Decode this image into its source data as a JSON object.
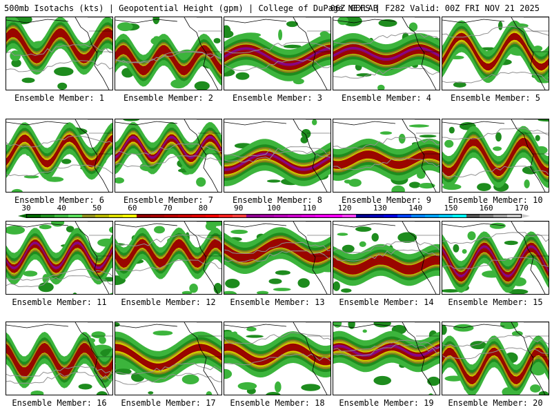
{
  "header": {
    "left": "500mb Isotachs (kts) | Geopotential Height (gpm) | College of DuPage NEXLAB",
    "right": "06Z GEFS | F282 Valid: 00Z FRI NOV 21 2025"
  },
  "members": [
    {
      "label": "Ensemble Member: 1"
    },
    {
      "label": "Ensemble Member: 2"
    },
    {
      "label": "Ensemble Member: 3"
    },
    {
      "label": "Ensemble Member: 4"
    },
    {
      "label": "Ensemble Member: 5"
    },
    {
      "label": "Ensemble Member: 6"
    },
    {
      "label": "Ensemble Member: 7"
    },
    {
      "label": "Ensemble Member: 8"
    },
    {
      "label": "Ensemble Member: 9"
    },
    {
      "label": "Ensemble Member: 10"
    },
    {
      "label": "Ensemble Member: 11"
    },
    {
      "label": "Ensemble Member: 12"
    },
    {
      "label": "Ensemble Member: 13"
    },
    {
      "label": "Ensemble Member: 14"
    },
    {
      "label": "Ensemble Member: 15"
    },
    {
      "label": "Ensemble Member: 16"
    },
    {
      "label": "Ensemble Member: 17"
    },
    {
      "label": "Ensemble Member: 18"
    },
    {
      "label": "Ensemble Member: 19"
    },
    {
      "label": "Ensemble Member: 20"
    }
  ],
  "colorbar": {
    "ticks": [
      "30",
      "40",
      "50",
      "60",
      "70",
      "80",
      "90",
      "100",
      "110",
      "120",
      "130",
      "140",
      "150",
      "160",
      "170"
    ],
    "colors": [
      "#006400",
      "#1e8c1e",
      "#3cb43c",
      "#5adc5a",
      "#8c8c1e",
      "#b4b400",
      "#dcdc00",
      "#ffff00",
      "#8c0000",
      "#a00000",
      "#b40000",
      "#c80000",
      "#dc0000",
      "#f00000",
      "#ff2020",
      "#ff3c3c",
      "#8c008c",
      "#a000a0",
      "#b400b4",
      "#c800c8",
      "#dc00dc",
      "#f000f0",
      "#ff00ff",
      "#ff3cff",
      "#00008c",
      "#0000b4",
      "#0000dc",
      "#0040ff",
      "#0080ff",
      "#00a0ff",
      "#00c8ff",
      "#00ffff",
      "#505050",
      "#787878",
      "#a0a0a0",
      "#c8c8c8"
    ],
    "left_arrow_color": "#006400",
    "right_arrow_color": "#c8c8c8"
  },
  "map_colors": {
    "green": "#3cb43c",
    "dark_green": "#1e8c1e",
    "yellow": "#dcdc00",
    "olive": "#8c8c1e",
    "red": "#a00000",
    "purple": "#8c008c",
    "contour": "#909090",
    "coast": "#000000"
  }
}
